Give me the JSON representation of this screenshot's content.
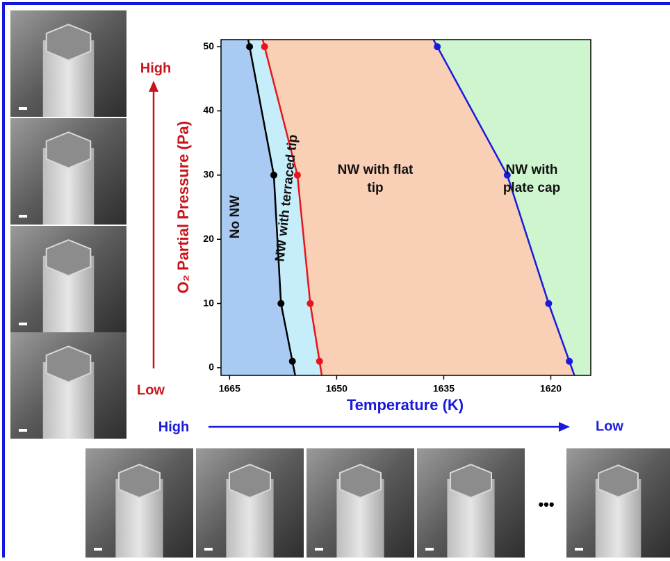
{
  "chart_data": {
    "type": "phase-diagram",
    "x_label": "Temperature (K)",
    "y_label": "O₂ Partial Pressure (Pa)",
    "xlim": [
      1666.2,
      1614.4
    ],
    "ylim": [
      -1.2,
      51.1
    ],
    "xticks": [
      1665,
      1650,
      1635,
      1620
    ],
    "yticks": [
      0,
      10,
      20,
      30,
      40,
      50
    ],
    "series": [
      {
        "color": "#000000",
        "x": [
          1662.2,
          1658.8,
          1657.8,
          1656.2
        ],
        "y": [
          50,
          30,
          10,
          1
        ]
      },
      {
        "color": "#e8141c",
        "x": [
          1660.1,
          1655.5,
          1653.7,
          1652.4
        ],
        "y": [
          50,
          30,
          10,
          1
        ]
      },
      {
        "color": "#1a1adc",
        "x": [
          1635.9,
          1626.1,
          1620.3,
          1617.4
        ],
        "y": [
          50,
          30,
          10,
          1
        ]
      }
    ],
    "regions": [
      {
        "label": [
          "No NW"
        ],
        "color": "#a9caf2"
      },
      {
        "label": [
          "NW with terraced tip"
        ],
        "color": "#c6eefa"
      },
      {
        "label": [
          "NW with flat",
          "tip"
        ],
        "color": "#f9cfb5"
      },
      {
        "label": [
          "NW with",
          "plate cap"
        ],
        "color": "#cff5cf"
      }
    ],
    "annotations": {
      "pressure_high": "High",
      "pressure_low": "Low",
      "temperature_high": "High",
      "temperature_low": "Low",
      "ellipsis": "•••"
    }
  }
}
